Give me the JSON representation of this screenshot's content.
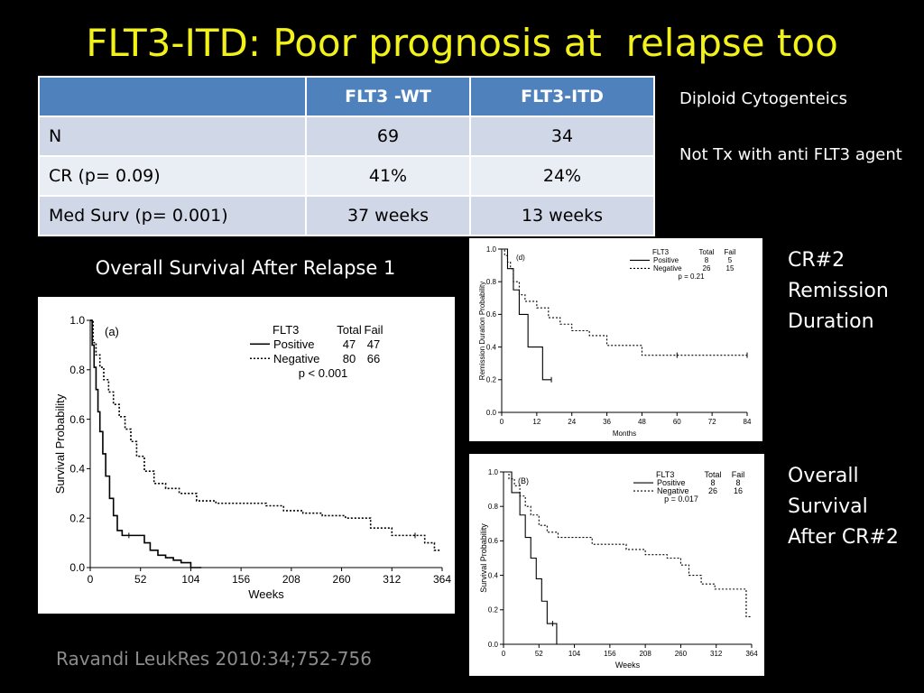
{
  "slide": {
    "title": "FLT3-ITD: Poor prognosis at  relapse too",
    "citation": "Ravandi LeukRes 2010:34;752-756"
  },
  "table": {
    "headers": [
      "",
      "FLT3 -WT",
      "FLT3-ITD"
    ],
    "rows": [
      [
        "N",
        "69",
        "34"
      ],
      [
        "CR  (p= 0.09)",
        "41%",
        "24%"
      ],
      [
        "Med Surv (p= 0.001)",
        "37 weeks",
        "13 weeks"
      ]
    ]
  },
  "notes": {
    "line1": "Diploid Cytogenteics",
    "line2": "Not Tx with anti FLT3 agent"
  },
  "captions": {
    "os_after_relapse": "Overall Survival After Relapse 1",
    "cr2_line1": "CR#2",
    "cr2_line2": "Remission",
    "cr2_line3": "Duration",
    "os2_line1": "Overall",
    "os2_line2": "Survival",
    "os2_line3": "After CR#2"
  },
  "chart_data": [
    {
      "type": "line",
      "panel": "(a)",
      "xlabel": "Weeks",
      "ylabel": "Survival Probability",
      "x_ticks": [
        "0",
        "52",
        "104",
        "156",
        "208",
        "260",
        "312",
        "364"
      ],
      "y_ticks": [
        "0.0",
        "0.2",
        "0.4",
        "0.6",
        "0.8",
        "1.0"
      ],
      "xlim": [
        0,
        364
      ],
      "ylim": [
        0,
        1
      ],
      "legend": {
        "title": "FLT3",
        "col_total": "Total",
        "col_fail": "Fail",
        "pvalue": "p < 0.001"
      },
      "series": [
        {
          "name": "Positive",
          "total": "47",
          "fail": "47",
          "style": "solid",
          "x": [
            0,
            2,
            4,
            6,
            8,
            10,
            13,
            16,
            20,
            24,
            28,
            33,
            40,
            48,
            56,
            62,
            70,
            78,
            86,
            94,
            104,
            115
          ],
          "y": [
            1.0,
            0.9,
            0.81,
            0.72,
            0.63,
            0.55,
            0.46,
            0.37,
            0.28,
            0.21,
            0.15,
            0.13,
            0.13,
            0.13,
            0.1,
            0.07,
            0.05,
            0.04,
            0.03,
            0.02,
            0.0,
            0.0
          ]
        },
        {
          "name": "Negative",
          "total": "80",
          "fail": "66",
          "style": "dotted",
          "x": [
            0,
            3,
            6,
            10,
            14,
            19,
            24,
            30,
            36,
            42,
            48,
            56,
            66,
            78,
            92,
            110,
            130,
            156,
            182,
            200,
            220,
            240,
            264,
            290,
            312,
            326,
            336,
            346,
            356,
            362
          ],
          "y": [
            1.0,
            0.91,
            0.86,
            0.81,
            0.76,
            0.71,
            0.66,
            0.61,
            0.56,
            0.51,
            0.45,
            0.39,
            0.34,
            0.32,
            0.3,
            0.27,
            0.26,
            0.26,
            0.25,
            0.23,
            0.22,
            0.21,
            0.2,
            0.16,
            0.13,
            0.13,
            0.13,
            0.1,
            0.07,
            0.07
          ]
        }
      ]
    },
    {
      "type": "line",
      "panel": "(d)",
      "xlabel": "Months",
      "ylabel": "Remission Duration Probability",
      "x_ticks": [
        "0",
        "12",
        "24",
        "36",
        "48",
        "60",
        "72",
        "84"
      ],
      "y_ticks": [
        "0.0",
        "0.2",
        "0.4",
        "0.6",
        "0.8",
        "1.0"
      ],
      "xlim": [
        0,
        84
      ],
      "ylim": [
        0,
        1
      ],
      "legend": {
        "title": "FLT3",
        "col_total": "Total",
        "col_fail": "Fail",
        "pvalue": "p = 0.21"
      },
      "series": [
        {
          "name": "Positive",
          "total": "8",
          "fail": "5",
          "style": "solid",
          "x": [
            0,
            2,
            4,
            6,
            9,
            14,
            17
          ],
          "y": [
            1.0,
            0.88,
            0.75,
            0.6,
            0.4,
            0.2,
            0.2
          ]
        },
        {
          "name": "Negative",
          "total": "26",
          "fail": "15",
          "style": "dotted",
          "x": [
            0,
            1,
            2,
            3,
            4,
            6,
            8,
            12,
            16,
            20,
            24,
            30,
            36,
            42,
            48,
            56,
            60,
            72,
            84
          ],
          "y": [
            1.0,
            0.96,
            0.92,
            0.88,
            0.8,
            0.72,
            0.68,
            0.64,
            0.58,
            0.54,
            0.5,
            0.47,
            0.41,
            0.41,
            0.35,
            0.35,
            0.35,
            0.35,
            0.35
          ]
        }
      ]
    },
    {
      "type": "line",
      "panel": "(B)",
      "xlabel": "Weeks",
      "ylabel": "Survival Probability",
      "x_ticks": [
        "0",
        "52",
        "104",
        "156",
        "208",
        "260",
        "312",
        "364"
      ],
      "y_ticks": [
        "0.0",
        "0.2",
        "0.4",
        "0.6",
        "0.8",
        "1.0"
      ],
      "xlim": [
        0,
        364
      ],
      "ylim": [
        0,
        1
      ],
      "legend": {
        "title": "FLT3",
        "col_total": "Total",
        "col_fail": "Fail",
        "pvalue": "p = 0.017"
      },
      "series": [
        {
          "name": "Positive",
          "total": "8",
          "fail": "8",
          "style": "solid",
          "x": [
            0,
            12,
            24,
            32,
            40,
            48,
            56,
            64,
            72,
            78
          ],
          "y": [
            1.0,
            0.88,
            0.75,
            0.62,
            0.5,
            0.38,
            0.25,
            0.12,
            0.12,
            0.0
          ]
        },
        {
          "name": "Negative",
          "total": "26",
          "fail": "16",
          "style": "dotted",
          "x": [
            0,
            8,
            16,
            24,
            32,
            40,
            52,
            64,
            80,
            104,
            130,
            156,
            180,
            208,
            240,
            260,
            272,
            290,
            310,
            330,
            356,
            364
          ],
          "y": [
            1.0,
            0.96,
            0.92,
            0.86,
            0.8,
            0.75,
            0.69,
            0.65,
            0.62,
            0.62,
            0.58,
            0.58,
            0.55,
            0.52,
            0.5,
            0.46,
            0.4,
            0.35,
            0.32,
            0.32,
            0.16,
            0.16
          ]
        }
      ]
    }
  ]
}
